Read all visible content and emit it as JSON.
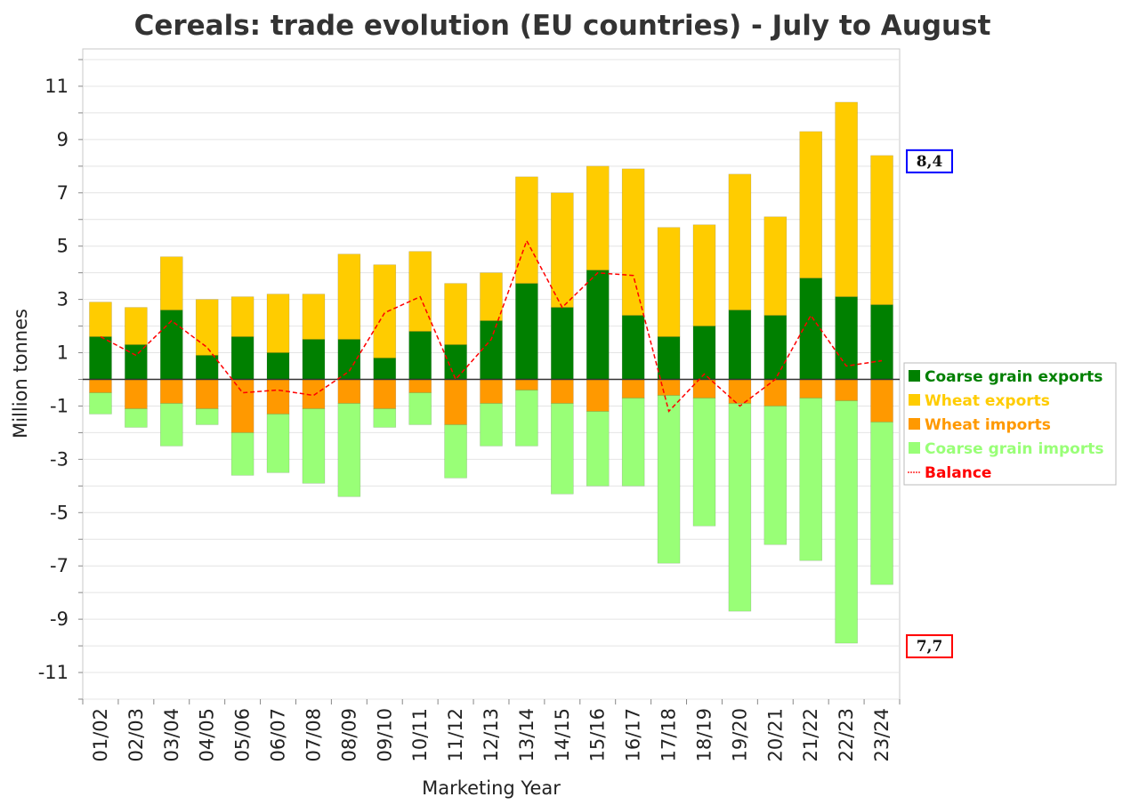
{
  "chart_data": {
    "type": "bar",
    "title": "Cereals: trade evolution (EU countries) - July to August",
    "xlabel": "Marketing Year",
    "ylabel": "Million tonnes",
    "ylim": [
      -12,
      12.4
    ],
    "yticks": [
      11,
      9,
      7,
      5,
      3,
      1,
      -1,
      -3,
      -5,
      -7,
      -9,
      -11
    ],
    "grid": true,
    "legend_position": "right",
    "categories": [
      "01/02",
      "02/03",
      "03/04",
      "04/05",
      "05/06",
      "06/07",
      "07/08",
      "08/09",
      "09/10",
      "10/11",
      "11/12",
      "12/13",
      "13/14",
      "14/15",
      "15/16",
      "16/17",
      "17/18",
      "18/19",
      "19/20",
      "20/21",
      "21/22",
      "22/23",
      "23/24"
    ],
    "series": [
      {
        "name": "Coarse grain exports",
        "color": "#008000",
        "values": [
          1.6,
          1.3,
          2.6,
          0.9,
          1.6,
          1.0,
          1.5,
          1.5,
          0.8,
          1.8,
          1.3,
          2.2,
          3.6,
          2.7,
          4.1,
          2.4,
          1.6,
          2.0,
          2.6,
          2.4,
          3.8,
          3.1,
          2.8
        ]
      },
      {
        "name": "Wheat exports",
        "color": "#FFCC00",
        "values": [
          1.3,
          1.4,
          2.0,
          2.1,
          1.5,
          2.2,
          1.7,
          3.2,
          3.5,
          3.0,
          2.3,
          1.8,
          4.0,
          4.3,
          3.9,
          5.5,
          4.1,
          3.8,
          5.1,
          3.7,
          5.5,
          7.3,
          5.6
        ]
      },
      {
        "name": "Wheat imports",
        "color": "#FF9900",
        "values": [
          -0.5,
          -1.1,
          -0.9,
          -1.1,
          -2.0,
          -1.3,
          -1.1,
          -0.9,
          -1.1,
          -0.5,
          -1.7,
          -0.9,
          -0.4,
          -0.9,
          -1.2,
          -0.7,
          -0.6,
          -0.7,
          -0.9,
          -1.0,
          -0.7,
          -0.8,
          -1.6
        ]
      },
      {
        "name": "Coarse grain imports",
        "color": "#99FF77",
        "values": [
          -0.8,
          -0.7,
          -1.6,
          -0.6,
          -1.6,
          -2.2,
          -2.8,
          -3.5,
          -0.7,
          -1.2,
          -2.0,
          -1.6,
          -2.1,
          -3.4,
          -2.8,
          -3.3,
          -6.3,
          -4.8,
          -7.8,
          -5.2,
          -6.1,
          -9.1,
          -6.1
        ]
      },
      {
        "name": "Balance",
        "color": "#FF0000",
        "values": [
          1.6,
          0.9,
          2.2,
          1.2,
          -0.5,
          -0.4,
          -0.6,
          0.3,
          2.5,
          3.1,
          0.0,
          1.5,
          5.2,
          2.7,
          4.0,
          3.9,
          -1.2,
          0.2,
          -1.0,
          0.0,
          2.4,
          0.5,
          0.7
        ]
      }
    ],
    "annotations": [
      {
        "text": "8,4",
        "border_color": "#0000FF",
        "at_value": 8.2
      },
      {
        "text": "7,7",
        "border_color": "#FF0000",
        "at_value": -10.0
      }
    ]
  }
}
